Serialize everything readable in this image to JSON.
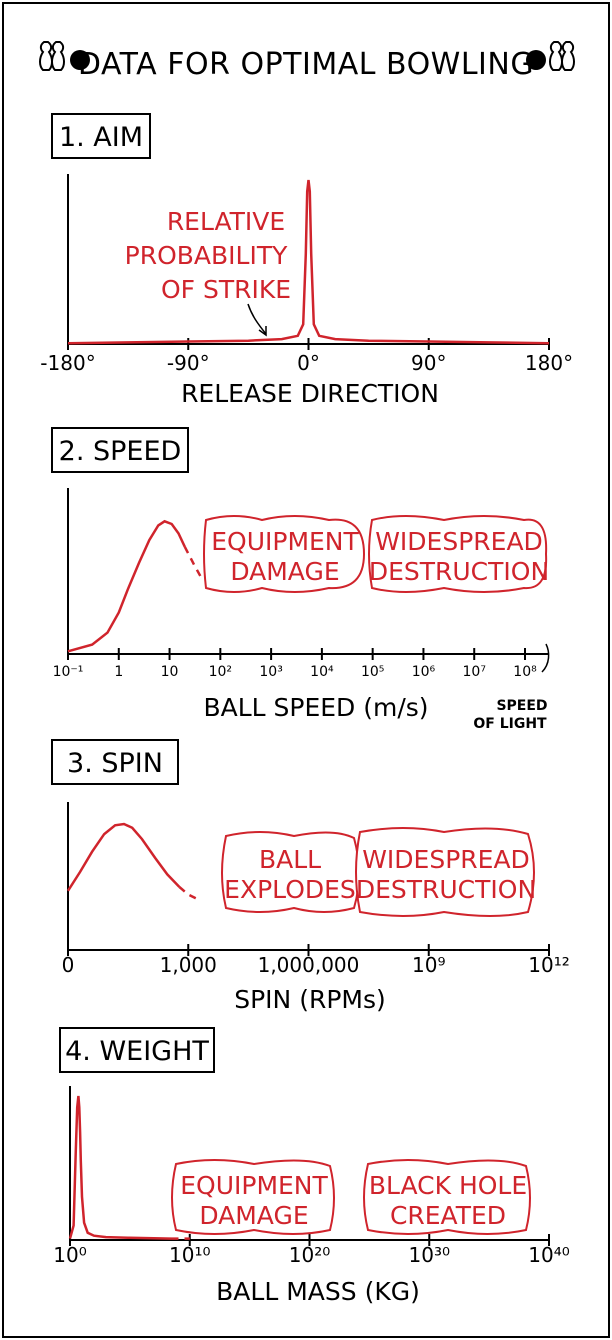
{
  "title": "DATA FOR OPTIMAL BOWLING",
  "colors": {
    "ink": "#000000",
    "curve": "#d0242c",
    "background": "#ffffff"
  },
  "icons": [
    "bowling-pins-ball-icon",
    "bowling-ball-pins-icon"
  ],
  "chart_data": [
    {
      "type": "line",
      "panel_title": "1. AIM",
      "xlabel": "RELEASE DIRECTION",
      "ylabel": "",
      "xlim": [
        -180,
        180
      ],
      "x_ticks": [
        "-180°",
        "-90°",
        "0°",
        "90°",
        "180°"
      ],
      "annotation": "RELATIVE PROBABILITY OF STRIKE",
      "annotation_lines": [
        "RELATIVE",
        "PROBABILITY",
        "OF STRIKE"
      ],
      "series": [
        {
          "x": [
            -180,
            -135,
            -90,
            -45,
            -20,
            -8,
            -4,
            -2,
            -1,
            0,
            1,
            2,
            4,
            8,
            20,
            45,
            90,
            135,
            180
          ],
          "values": [
            0.005,
            0.01,
            0.015,
            0.02,
            0.03,
            0.05,
            0.12,
            0.55,
            0.93,
            1.0,
            0.93,
            0.55,
            0.12,
            0.05,
            0.03,
            0.02,
            0.015,
            0.01,
            0.005
          ]
        }
      ]
    },
    {
      "type": "line",
      "panel_title": "2. SPEED",
      "xlabel": "BALL SPEED (m/s)",
      "ylabel": "",
      "x_scale": "log",
      "xlim": [
        0.1,
        300000000
      ],
      "x_ticks": [
        "10⁻¹",
        "1",
        "10",
        "10²",
        "10³",
        "10⁴",
        "10⁵",
        "10⁶",
        "10⁷",
        "10⁸"
      ],
      "x_tick_values": [
        0.1,
        1,
        10,
        100,
        1000,
        10000,
        100000,
        1000000,
        10000000,
        100000000
      ],
      "annotation": "SPEED OF LIGHT",
      "annotation_lines": [
        "SPEED",
        "OF LIGHT"
      ],
      "regions": [
        {
          "label": "EQUIPMENT DAMAGE",
          "lines": [
            "EQUIPMENT",
            "DAMAGE"
          ]
        },
        {
          "label": "WIDESPREAD DESTRUCTION",
          "lines": [
            "WIDESPREAD",
            "DESTRUCTION"
          ]
        }
      ],
      "series": [
        {
          "x": [
            0.1,
            0.3,
            0.6,
            1,
            1.5,
            2.5,
            4,
            6,
            8,
            11,
            15,
            20
          ],
          "values": [
            0.02,
            0.07,
            0.16,
            0.31,
            0.48,
            0.68,
            0.85,
            0.96,
            0.99,
            0.97,
            0.9,
            0.8
          ]
        },
        {
          "x": [
            20,
            30,
            45
          ],
          "values": [
            0.8,
            0.67,
            0.55
          ],
          "style": "dashed"
        }
      ]
    },
    {
      "type": "line",
      "panel_title": "3. SPIN",
      "xlabel": "SPIN (RPMs)",
      "ylabel": "",
      "x_scale": "log",
      "xlim": [
        1,
        1000000000000
      ],
      "x_ticks": [
        "0",
        "1,000",
        "1,000,000",
        "10⁹",
        "10¹²"
      ],
      "x_tick_values": [
        1,
        1000,
        1000000,
        1000000000,
        1000000000000
      ],
      "regions": [
        {
          "label": "BALL EXPLODES",
          "lines": [
            "BALL",
            "EXPLODES"
          ]
        },
        {
          "label": "WIDESPREAD DESTRUCTION",
          "lines": [
            "WIDESPREAD",
            "DESTRUCTION"
          ]
        }
      ],
      "series": [
        {
          "x": [
            1,
            2,
            4,
            8,
            15,
            25,
            40,
            70,
            150,
            300,
            600
          ],
          "values": [
            0.47,
            0.62,
            0.78,
            0.92,
            0.99,
            1.0,
            0.97,
            0.88,
            0.73,
            0.6,
            0.5
          ]
        },
        {
          "x": [
            600,
            1000,
            1800
          ],
          "values": [
            0.5,
            0.44,
            0.4
          ],
          "style": "dashed"
        }
      ]
    },
    {
      "type": "line",
      "panel_title": "4. WEIGHT",
      "xlabel": "BALL MASS (KG)",
      "ylabel": "",
      "x_scale": "log",
      "xlim": [
        1,
        10000000000000000000000000000000000000000
      ],
      "x_ticks": [
        "10⁰",
        "10¹⁰",
        "10²⁰",
        "10³⁰",
        "10⁴⁰"
      ],
      "x_tick_values": [
        1,
        10000000000,
        100000000000000000000,
        1000000000000000000000000000000,
        10000000000000000000000000000000000000000
      ],
      "regions": [
        {
          "label": "EQUIPMENT DAMAGE",
          "lines": [
            "EQUIPMENT",
            "DAMAGE"
          ]
        },
        {
          "label": "BLACK HOLE CREATED",
          "lines": [
            "BLACK HOLE",
            "CREATED"
          ]
        }
      ],
      "series": [
        {
          "x": [
            1,
            2,
            3,
            4,
            5,
            6,
            7,
            8,
            10,
            15,
            30,
            100,
            1000,
            100000,
            10000000,
            300000000
          ],
          "values": [
            0.01,
            0.1,
            0.6,
            0.92,
            1.0,
            0.92,
            0.75,
            0.55,
            0.3,
            0.12,
            0.05,
            0.03,
            0.02,
            0.015,
            0.012,
            0.01
          ]
        },
        {
          "x": [
            300000000,
            10000000000
          ],
          "values": [
            0.01,
            0.01
          ],
          "style": "dashed"
        }
      ]
    }
  ]
}
